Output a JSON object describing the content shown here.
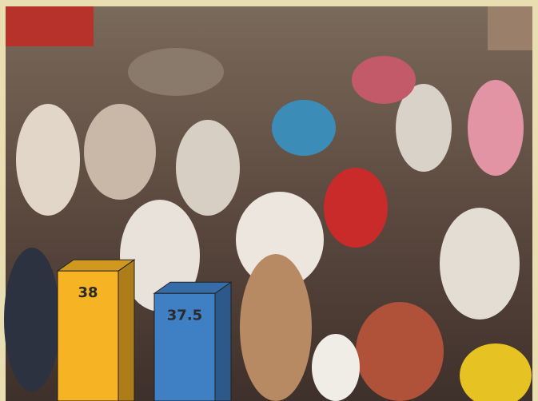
{
  "chart_data": {
    "type": "bar3d",
    "categories": [
      null,
      null
    ],
    "values": [
      38,
      37.5
    ],
    "colors": [
      "#f6b324",
      "#3f7fc4"
    ],
    "ylim": [
      35.1,
      43.9
    ]
  }
}
